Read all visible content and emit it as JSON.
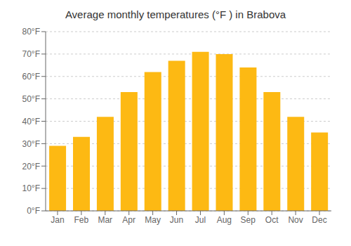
{
  "chart_data": {
    "type": "bar",
    "title": "Average monthly temperatures (°F ) in Brabova",
    "categories": [
      "Jan",
      "Feb",
      "Mar",
      "Apr",
      "May",
      "Jun",
      "Jul",
      "Aug",
      "Sep",
      "Oct",
      "Nov",
      "Dec"
    ],
    "values": [
      29,
      33,
      42,
      53,
      62,
      67,
      71,
      70,
      64,
      53,
      42,
      35
    ],
    "color": "#FDB913",
    "ylim": [
      0,
      80
    ],
    "yticks": [
      {
        "value": 0,
        "label": "0°F"
      },
      {
        "value": 10,
        "label": "10°F"
      },
      {
        "value": 20,
        "label": "20°F"
      },
      {
        "value": 30,
        "label": "30°F"
      },
      {
        "value": 40,
        "label": "40°F"
      },
      {
        "value": 50,
        "label": "50°F"
      },
      {
        "value": 60,
        "label": "60°F"
      },
      {
        "value": 70,
        "label": "70°F"
      },
      {
        "value": 80,
        "label": "80°F"
      }
    ],
    "grid": true
  }
}
